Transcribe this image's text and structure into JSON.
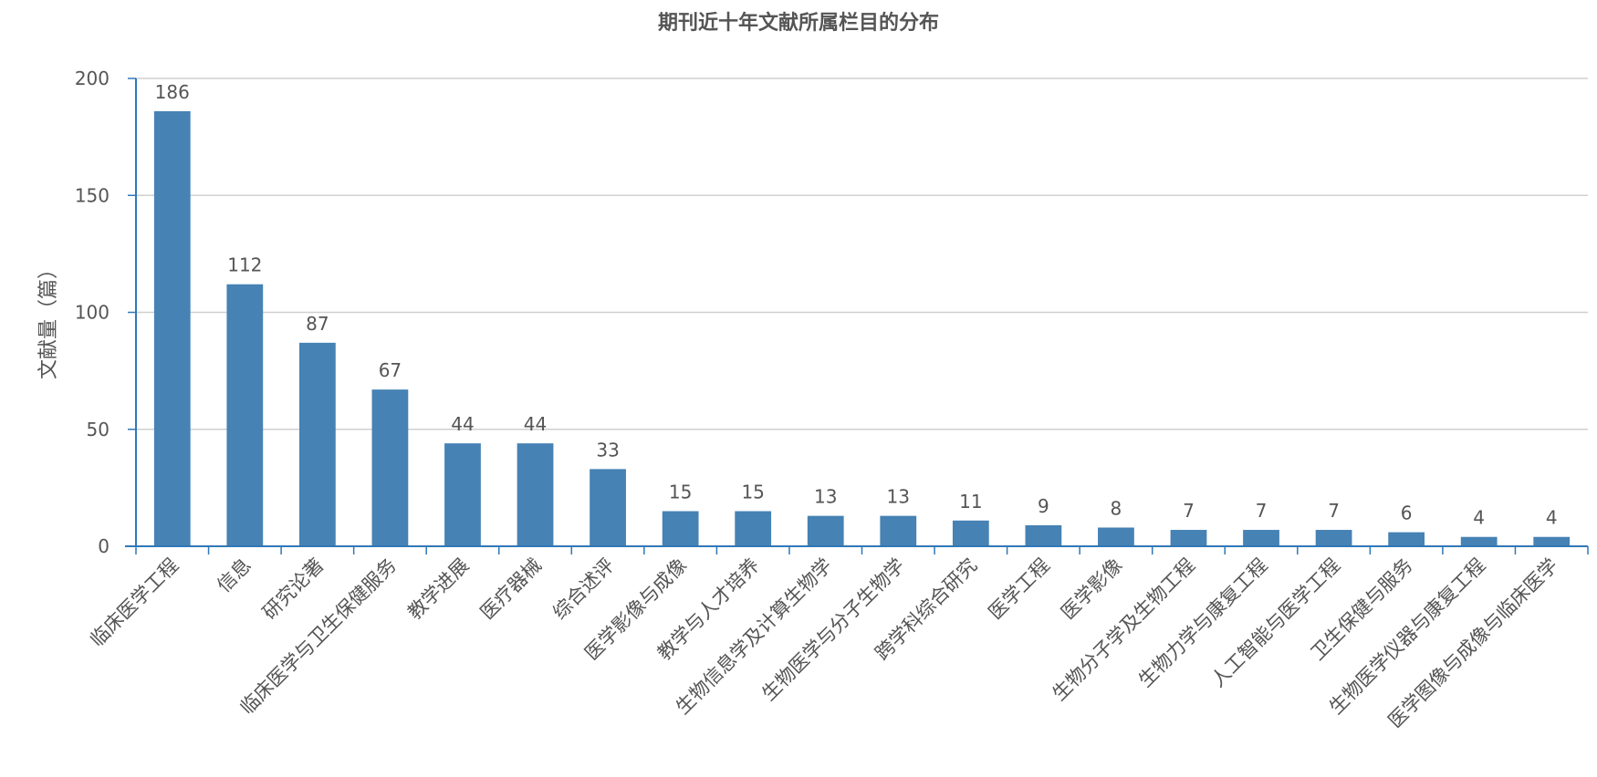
{
  "chart_data": {
    "type": "bar",
    "title": "期刊近十年文献所属栏目的分布",
    "xlabel": "",
    "ylabel": "文献量（篇）",
    "ylim": [
      0,
      200
    ],
    "yticks": [
      0,
      50,
      100,
      150,
      200
    ],
    "grid": true,
    "categories": [
      "临床医学工程",
      "信息",
      "研究论著",
      "临床医学与卫生保健服务",
      "教学进展",
      "医疗器械",
      "综合述评",
      "医学影像与成像",
      "教学与人才培养",
      "生物信息学及计算生物学",
      "生物医学与分子生物学",
      "跨学科综合研究",
      "医学工程",
      "医学影像",
      "生物分子学及生物工程",
      "生物力学与康复工程",
      "人工智能与医学工程",
      "卫生保健与服务",
      "生物医学仪器与康复工程",
      "医学图像与成像与临床医学"
    ],
    "values": [
      186,
      112,
      87,
      67,
      44,
      44,
      33,
      15,
      15,
      13,
      13,
      11,
      9,
      8,
      7,
      7,
      7,
      6,
      4,
      4
    ],
    "colors": {
      "bar": "#4682b4",
      "axis": "#2f78b8",
      "grid": "#d0d0d0",
      "text": "#555555"
    }
  }
}
